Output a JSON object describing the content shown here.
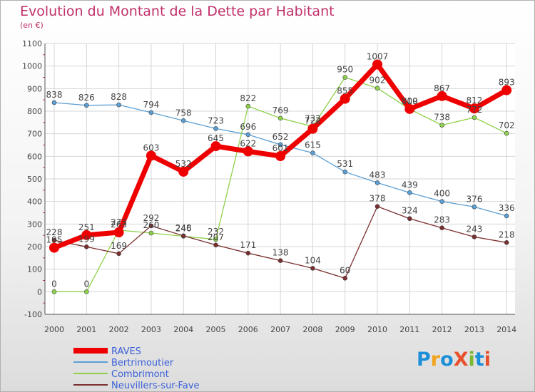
{
  "header": {
    "title": "Evolution du Montant de la Dette par Habitant",
    "subtitle": "(en €)"
  },
  "logo": {
    "text": "ProXiti",
    "colors": [
      "#1c8fd8",
      "#f2a51e",
      "#1c8fd8",
      "#e8502c",
      "#7ab82f",
      "#1c8fd8",
      "#e8502c"
    ]
  },
  "chart_data": {
    "type": "line",
    "x": [
      "2000",
      "2001",
      "2002",
      "2003",
      "2004",
      "2005",
      "2006",
      "2007",
      "2008",
      "2009",
      "2010",
      "2011",
      "2012",
      "2013",
      "2014"
    ],
    "ylim": [
      -100,
      1100
    ],
    "yticks": [
      -100,
      0,
      100,
      200,
      300,
      400,
      500,
      600,
      700,
      800,
      900,
      1000,
      1100
    ],
    "grid": true,
    "legend_placement": "bottom-left",
    "series": [
      {
        "name": "Bertrimoutier",
        "color": "#5b9fd4",
        "width": 1.3,
        "marker": 3,
        "values": [
          838,
          826,
          828,
          794,
          758,
          723,
          696,
          652,
          615,
          531,
          483,
          439,
          400,
          376,
          336
        ]
      },
      {
        "name": "Combrimont",
        "color": "#8ed14a",
        "width": 1.3,
        "marker": 3,
        "values": [
          0,
          0,
          273,
          260,
          246,
          232,
          822,
          769,
          732,
          950,
          902,
          809,
          738,
          772,
          702
        ]
      },
      {
        "name": "Neuvillers-sur-Fave",
        "color": "#7a2e2e",
        "width": 1.3,
        "marker": 3,
        "values": [
          228,
          199,
          169,
          292,
          248,
          207,
          171,
          138,
          104,
          60,
          378,
          324,
          283,
          243,
          218
        ]
      },
      {
        "name": "RAVES",
        "color": "#ee0000",
        "width": 7,
        "marker": 7,
        "values": [
          195,
          251,
          263,
          603,
          532,
          645,
          622,
          601,
          722,
          855,
          1007,
          810,
          867,
          812,
          893
        ]
      }
    ],
    "legend": [
      "RAVES",
      "Bertrimoutier",
      "Combrimont",
      "Neuvillers-sur-Fave"
    ]
  }
}
